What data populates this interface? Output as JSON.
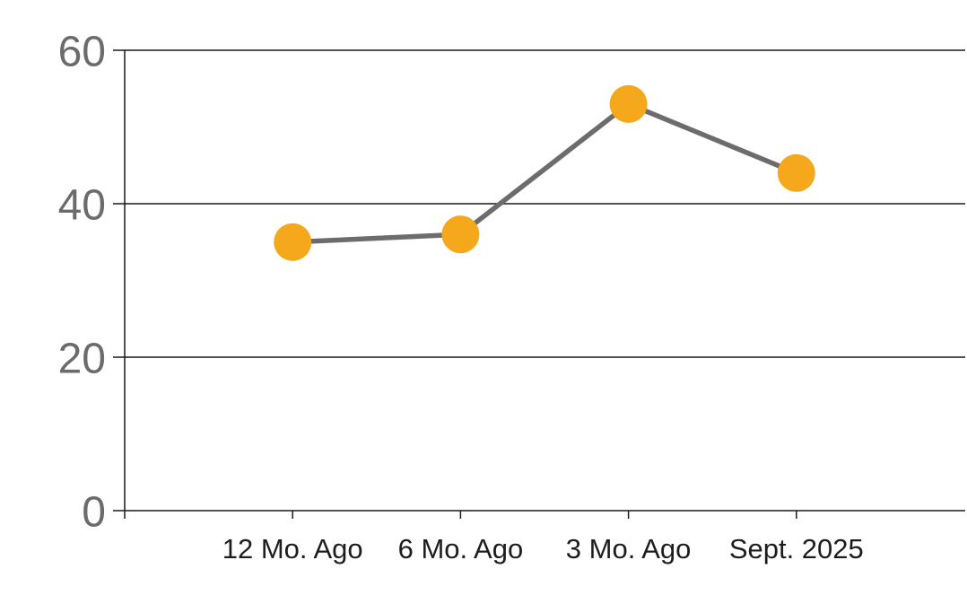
{
  "chart_data": {
    "type": "line",
    "categories": [
      "12 Mo. Ago",
      "6 Mo. Ago",
      "3 Mo. Ago",
      "Sept. 2025"
    ],
    "series": [
      {
        "name": "series-1",
        "values": [
          35,
          36,
          53,
          44
        ]
      }
    ],
    "title": "",
    "xlabel": "",
    "ylabel": "",
    "ylim": [
      0,
      60
    ],
    "yticks": [
      0,
      20,
      40,
      60
    ],
    "grid": true,
    "legend": false,
    "legend_position": "none",
    "colors": {
      "marker": "#F5A81C",
      "line": "#6C6C6C",
      "grid": "#1A1A1A",
      "axis": "#1A1A1A",
      "ytick_label": "#6B6B6B",
      "xtick_label": "#1D1D1D",
      "background": "#FFFFFF"
    },
    "marker_radius": 21,
    "line_width": 5.5
  }
}
